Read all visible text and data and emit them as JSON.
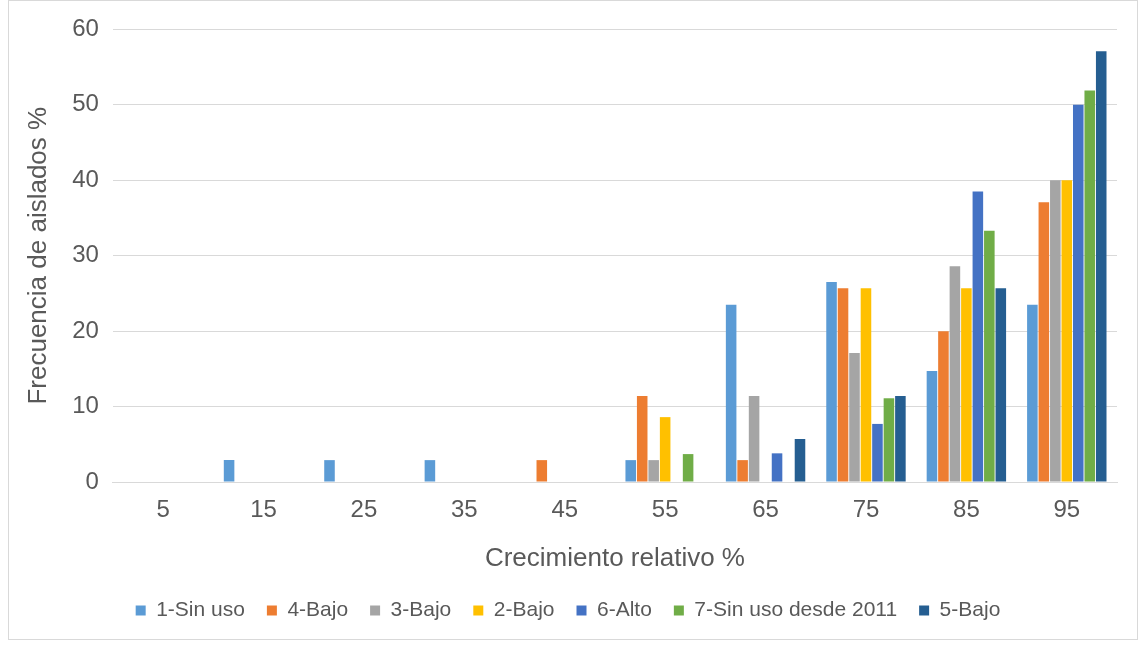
{
  "chart_data": {
    "type": "bar",
    "xlabel": "Crecimiento relativo %",
    "ylabel": "Frecuencia de aislados %",
    "categories": [
      "5",
      "15",
      "25",
      "35",
      "45",
      "55",
      "65",
      "75",
      "85",
      "95"
    ],
    "series": [
      {
        "name": "1-Sin uso",
        "color": "#5b9bd5",
        "values": [
          0,
          2.9,
          2.9,
          2.9,
          0,
          2.9,
          23.5,
          26.5,
          14.7,
          23.5
        ]
      },
      {
        "name": "4-Bajo",
        "color": "#ed7d31",
        "values": [
          0,
          0,
          0,
          0,
          2.9,
          11.4,
          2.9,
          25.7,
          20.0,
          37.1
        ]
      },
      {
        "name": "3-Bajo",
        "color": "#a5a5a5",
        "values": [
          0,
          0,
          0,
          0,
          0,
          2.9,
          11.4,
          17.1,
          28.6,
          40.0
        ]
      },
      {
        "name": "2-Bajo",
        "color": "#ffc000",
        "values": [
          0,
          0,
          0,
          0,
          0,
          8.6,
          0,
          25.7,
          25.7,
          40.0
        ]
      },
      {
        "name": "6-Alto",
        "color": "#4472c4",
        "values": [
          0,
          0,
          0,
          0,
          0,
          0,
          3.8,
          7.7,
          38.5,
          50.0
        ]
      },
      {
        "name": "7-Sin uso desde 2011",
        "color": "#70ad47",
        "values": [
          0,
          0,
          0,
          0,
          0,
          3.7,
          0,
          11.1,
          33.3,
          51.9
        ]
      },
      {
        "name": "5-Bajo",
        "color": "#255e91",
        "values": [
          0,
          0,
          0,
          0,
          0,
          0,
          5.7,
          11.4,
          25.7,
          57.1
        ]
      }
    ],
    "ylim": [
      0,
      60
    ],
    "yticks": [
      0,
      10,
      20,
      30,
      40,
      50,
      60
    ],
    "grid": "y",
    "legend": "bottom"
  }
}
